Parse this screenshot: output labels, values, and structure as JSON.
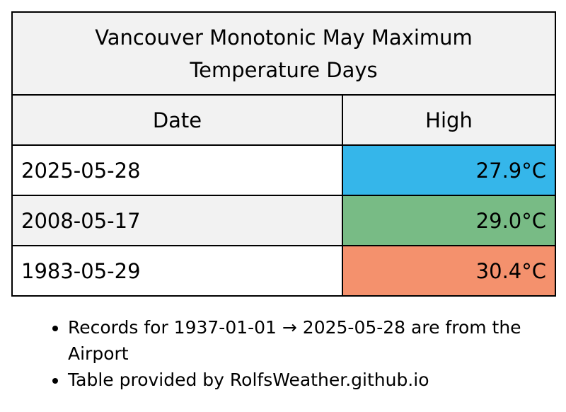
{
  "chart_data": {
    "type": "table",
    "title_lines": [
      "Vancouver Monotonic May Maximum",
      "Temperature Days"
    ],
    "columns": [
      "Date",
      "High"
    ],
    "rows": [
      {
        "date": "2025-05-28",
        "high": "27.9°C",
        "value": 27.9,
        "color": "#35b6ea"
      },
      {
        "date": "2008-05-17",
        "high": "29.0°C",
        "value": 29.0,
        "color": "#78bb85"
      },
      {
        "date": "1983-05-29",
        "high": "30.4°C",
        "value": 30.4,
        "color": "#f4916d"
      }
    ],
    "row_backgrounds": [
      "#ffffff",
      "#f2f2f2",
      "#ffffff"
    ],
    "header_background": "#f2f2f2"
  },
  "notes": [
    "Records for 1937-01-01 → 2025-05-28 are from the Airport",
    "Table provided by RolfsWeather.github.io"
  ]
}
